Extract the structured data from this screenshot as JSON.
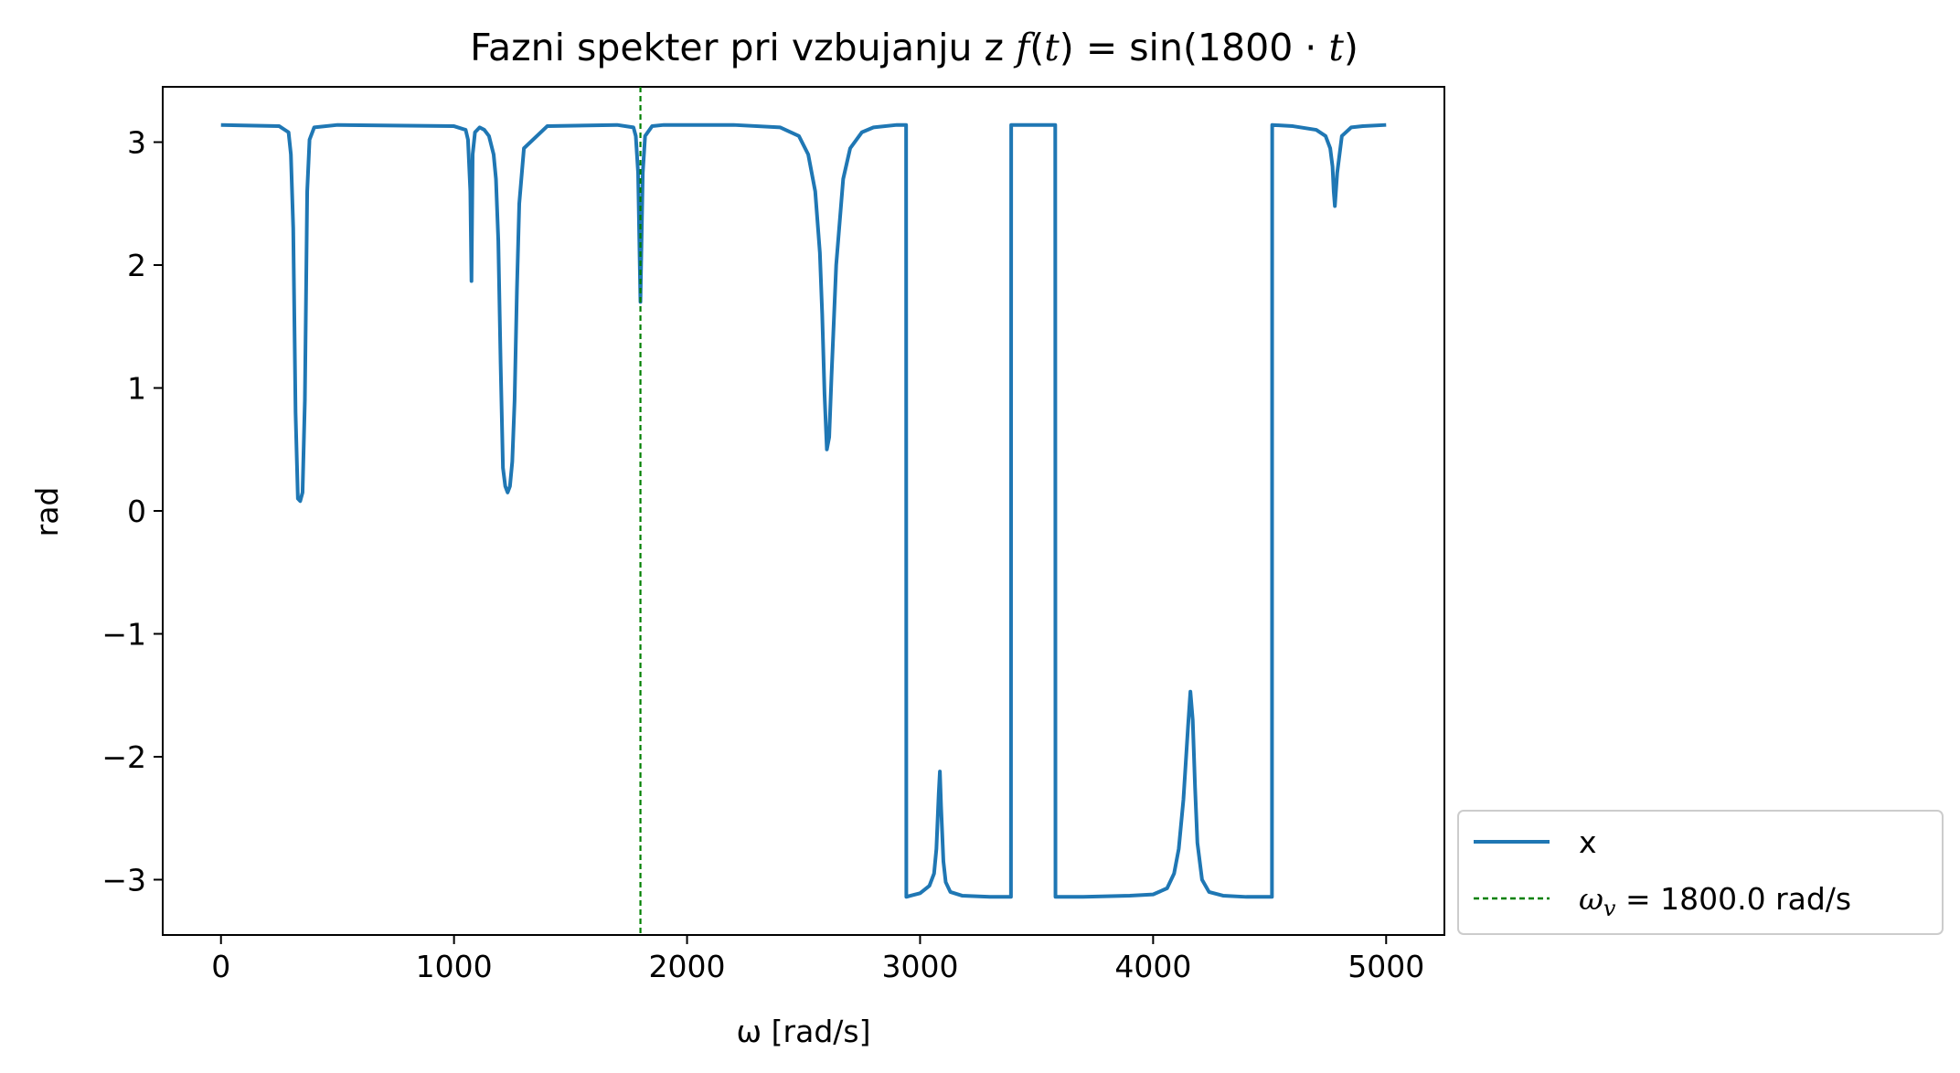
{
  "chart_data": {
    "type": "line",
    "title_parts": {
      "prefix": "Fazni spekter pri vzbujanju z ",
      "f": "f",
      "t_open": "(",
      "t": "t",
      "t_close": ")",
      "eq": " = sin(1800 · ",
      "t2": "t",
      "close": ")"
    },
    "xlabel": "ω [rad/s]",
    "ylabel": "rad",
    "xlim": [
      -250,
      5250
    ],
    "ylim": [
      -3.45,
      3.45
    ],
    "xticks": [
      0,
      1000,
      2000,
      3000,
      4000,
      5000
    ],
    "xtick_labels": [
      "0",
      "1000",
      "2000",
      "3000",
      "4000",
      "5000"
    ],
    "yticks": [
      -3,
      -2,
      -1,
      0,
      1,
      2,
      3
    ],
    "ytick_labels": [
      "−3",
      "−2",
      "−1",
      "0",
      "1",
      "2",
      "3"
    ],
    "grid": false,
    "legend_position": "outside-bottom-right",
    "series": [
      {
        "name": "x",
        "color": "#1f77b4",
        "x": [
          0,
          250,
          290,
          300,
          310,
          320,
          330,
          340,
          350,
          360,
          370,
          380,
          400,
          500,
          1000,
          1050,
          1060,
          1070,
          1075,
          1080,
          1090,
          1110,
          1130,
          1150,
          1170,
          1180,
          1190,
          1200,
          1210,
          1220,
          1230,
          1240,
          1250,
          1260,
          1270,
          1280,
          1300,
          1400,
          1700,
          1770,
          1780,
          1790,
          1800,
          1810,
          1820,
          1850,
          1900,
          2200,
          2400,
          2480,
          2520,
          2550,
          2570,
          2580,
          2590,
          2600,
          2610,
          2620,
          2640,
          2670,
          2700,
          2750,
          2800,
          2900,
          2940,
          2941,
          2960,
          3000,
          3040,
          3060,
          3070,
          3080,
          3085,
          3090,
          3100,
          3110,
          3130,
          3180,
          3300,
          3390,
          3391,
          3580,
          3581,
          3700,
          3900,
          4000,
          4060,
          4090,
          4110,
          4130,
          4150,
          4160,
          4170,
          4180,
          4190,
          4210,
          4240,
          4300,
          4400,
          4510,
          4511,
          4600,
          4700,
          4740,
          4760,
          4770,
          4775,
          4780,
          4790,
          4810,
          4850,
          4900,
          5000
        ],
        "y": [
          3.14,
          3.13,
          3.08,
          2.9,
          2.3,
          0.8,
          0.1,
          0.08,
          0.15,
          0.9,
          2.6,
          3.02,
          3.12,
          3.14,
          3.13,
          3.1,
          3.02,
          2.6,
          1.87,
          2.9,
          3.08,
          3.12,
          3.1,
          3.05,
          2.9,
          2.7,
          2.2,
          1.2,
          0.35,
          0.2,
          0.15,
          0.2,
          0.4,
          0.9,
          1.8,
          2.5,
          2.95,
          3.13,
          3.14,
          3.12,
          3.05,
          2.75,
          1.7,
          2.75,
          3.05,
          3.13,
          3.14,
          3.14,
          3.12,
          3.05,
          2.9,
          2.6,
          2.1,
          1.6,
          0.95,
          0.5,
          0.6,
          1.1,
          2.0,
          2.7,
          2.95,
          3.08,
          3.12,
          3.14,
          3.14,
          -3.14,
          -3.13,
          -3.11,
          -3.05,
          -2.95,
          -2.75,
          -2.3,
          -2.12,
          -2.4,
          -2.85,
          -3.02,
          -3.1,
          -3.13,
          -3.14,
          -3.14,
          3.14,
          3.14,
          -3.14,
          -3.14,
          -3.13,
          -3.12,
          -3.07,
          -2.95,
          -2.75,
          -2.35,
          -1.75,
          -1.47,
          -1.7,
          -2.25,
          -2.7,
          -3.0,
          -3.1,
          -3.13,
          -3.14,
          -3.14,
          3.14,
          3.13,
          3.1,
          3.05,
          2.95,
          2.8,
          2.6,
          2.48,
          2.75,
          3.05,
          3.12,
          3.13,
          3.14
        ]
      },
      {
        "name": "ω_v = 1800.0 rad/s",
        "color": "#008000",
        "style": "dashed",
        "vline_x": 1800
      }
    ],
    "legend": [
      {
        "label": "x",
        "color": "#1f77b4",
        "style": "solid"
      },
      {
        "label_math": "ω",
        "label_sub": "v",
        "label_rest": " = 1800.0 rad/s",
        "color": "#008000",
        "style": "dashed"
      }
    ]
  }
}
